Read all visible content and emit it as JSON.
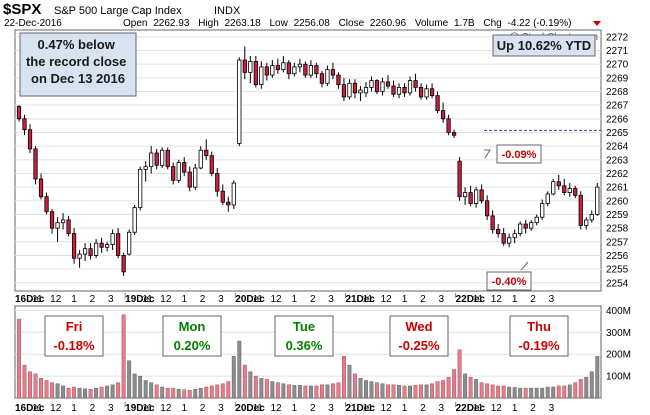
{
  "header": {
    "symbol": "$SPX",
    "name": "S&P 500 Large Cap Index",
    "exchange": "INDX",
    "date": "22-Dec-2016",
    "open_label": "Open",
    "open": "2262.93",
    "high_label": "High",
    "high": "2263.18",
    "low_label": "Low",
    "low": "2256.08",
    "close_label": "Close",
    "close": "2260.96",
    "volume_label": "Volume",
    "volume": "1.7B",
    "chg_label": "Chg",
    "chg": "-4.22 (-0.19%)",
    "watermark": "@ StockCharts.com"
  },
  "callouts": {
    "record": "0.47% below the record close on Dec 13 2016",
    "ytd": "Up 10.62% YTD",
    "pct_top": "-0.09%",
    "pct_bottom": "-0.40%"
  },
  "days": [
    {
      "name": "Fri",
      "chg": "-0.18%",
      "color": "#cc0000"
    },
    {
      "name": "Mon",
      "chg": "0.20%",
      "color": "#008000"
    },
    {
      "name": "Tue",
      "chg": "0.36%",
      "color": "#008000"
    },
    {
      "name": "Wed",
      "chg": "-0.25%",
      "color": "#cc0000"
    },
    {
      "name": "Thu",
      "chg": "-0.19%",
      "color": "#cc0000"
    }
  ],
  "colors": {
    "up": "#ffffff",
    "down": "#cc1f3a",
    "vol_up": "#8c8c8c",
    "vol_down": "#e07f8a",
    "callout_bg": "#d7e3f1",
    "grid": "#e3e3e3",
    "ref_line": "#3a3ab8"
  },
  "chart_data": {
    "type": "candlestick",
    "price_axis": {
      "ticks": [
        "2254",
        "2255",
        "2256",
        "2257",
        "2258",
        "2259",
        "2260",
        "2261",
        "2262",
        "2263",
        "2264",
        "2265",
        "2266",
        "2267",
        "2268",
        "2269",
        "2270",
        "2271",
        "2272"
      ],
      "ylim": [
        2253.4,
        2272.5
      ]
    },
    "volume_axis": {
      "ticks": [
        "100M",
        "200M",
        "300M",
        "400M"
      ],
      "ylim": [
        0,
        420
      ]
    },
    "record_close_level": 2265.15,
    "x_tick_labels": [
      {
        "t": "16Dec",
        "b": true
      },
      {
        "t": "11",
        "b": false
      },
      {
        "t": "12",
        "b": false
      },
      {
        "t": "1",
        "b": false
      },
      {
        "t": "2",
        "b": false
      },
      {
        "t": "3",
        "b": false
      },
      {
        "t": "19Dec",
        "b": true
      },
      {
        "t": "11",
        "b": false
      },
      {
        "t": "12",
        "b": false
      },
      {
        "t": "1",
        "b": false
      },
      {
        "t": "2",
        "b": false
      },
      {
        "t": "3",
        "b": false
      },
      {
        "t": "20Dec",
        "b": true
      },
      {
        "t": "11",
        "b": false
      },
      {
        "t": "12",
        "b": false
      },
      {
        "t": "1",
        "b": false
      },
      {
        "t": "2",
        "b": false
      },
      {
        "t": "3",
        "b": false
      },
      {
        "t": "21Dec",
        "b": true
      },
      {
        "t": "11",
        "b": false
      },
      {
        "t": "12",
        "b": false
      },
      {
        "t": "1",
        "b": false
      },
      {
        "t": "2",
        "b": false
      },
      {
        "t": "3",
        "b": false
      },
      {
        "t": "22Dec",
        "b": true
      },
      {
        "t": "11",
        "b": false
      },
      {
        "t": "12",
        "b": false
      },
      {
        "t": "1",
        "b": false
      },
      {
        "t": "2",
        "b": false
      },
      {
        "t": "3",
        "b": false
      }
    ],
    "candles": [
      [
        2266.9,
        2267.0,
        2265.8,
        2266.0,
        360
      ],
      [
        2266.0,
        2266.3,
        2264.8,
        2265.2,
        150
      ],
      [
        2265.2,
        2265.6,
        2263.5,
        2263.8,
        120
      ],
      [
        2263.8,
        2264.0,
        2261.2,
        2261.6,
        110
      ],
      [
        2261.6,
        2262.0,
        2260.1,
        2260.3,
        90
      ],
      [
        2260.3,
        2260.6,
        2259.0,
        2259.2,
        80
      ],
      [
        2259.2,
        2259.4,
        2257.6,
        2258.0,
        70
      ],
      [
        2258.0,
        2258.8,
        2257.0,
        2258.4,
        65
      ],
      [
        2258.4,
        2259.1,
        2257.9,
        2258.6,
        55
      ],
      [
        2258.6,
        2258.9,
        2257.4,
        2257.6,
        45
      ],
      [
        2257.6,
        2258.0,
        2255.4,
        2255.8,
        50
      ],
      [
        2255.8,
        2256.4,
        2255.1,
        2256.1,
        45
      ],
      [
        2256.1,
        2256.9,
        2255.6,
        2256.5,
        42
      ],
      [
        2256.5,
        2256.9,
        2255.7,
        2256.0,
        40
      ],
      [
        2256.0,
        2257.2,
        2255.8,
        2256.9,
        45
      ],
      [
        2256.9,
        2257.3,
        2256.2,
        2256.6,
        50
      ],
      [
        2256.6,
        2257.0,
        2256.3,
        2256.8,
        55
      ],
      [
        2256.8,
        2257.9,
        2256.4,
        2257.6,
        60
      ],
      [
        2257.6,
        2258.0,
        2255.8,
        2256.0,
        70
      ],
      [
        2256.0,
        2256.2,
        2254.5,
        2254.8,
        380
      ],
      [
        2256.1,
        2257.9,
        2256.0,
        2257.7,
        170
      ],
      [
        2257.7,
        2259.7,
        2257.5,
        2259.5,
        110
      ],
      [
        2259.5,
        2262.5,
        2259.3,
        2262.3,
        100
      ],
      [
        2262.3,
        2262.9,
        2261.4,
        2262.5,
        80
      ],
      [
        2262.5,
        2264.0,
        2262.0,
        2263.5,
        70
      ],
      [
        2263.5,
        2263.8,
        2262.3,
        2262.6,
        60
      ],
      [
        2262.6,
        2263.9,
        2262.4,
        2263.7,
        50
      ],
      [
        2263.7,
        2263.9,
        2262.3,
        2262.5,
        45
      ],
      [
        2262.5,
        2262.8,
        2261.2,
        2261.5,
        45
      ],
      [
        2261.5,
        2263.0,
        2261.3,
        2262.8,
        40
      ],
      [
        2262.8,
        2263.2,
        2261.8,
        2262.1,
        38
      ],
      [
        2262.1,
        2262.5,
        2260.7,
        2261.0,
        35
      ],
      [
        2261.0,
        2262.7,
        2260.8,
        2262.4,
        40
      ],
      [
        2262.4,
        2264.0,
        2262.3,
        2263.7,
        45
      ],
      [
        2263.7,
        2264.5,
        2263.0,
        2263.3,
        50
      ],
      [
        2263.3,
        2263.6,
        2261.8,
        2262.0,
        55
      ],
      [
        2262.0,
        2262.4,
        2260.3,
        2260.7,
        60
      ],
      [
        2260.7,
        2261.2,
        2259.7,
        2259.9,
        65
      ],
      [
        2259.9,
        2260.3,
        2259.2,
        2259.7,
        75
      ],
      [
        2259.7,
        2261.5,
        2259.4,
        2261.3,
        190
      ],
      [
        2264.2,
        2270.5,
        2264.0,
        2270.3,
        260
      ],
      [
        2270.3,
        2271.3,
        2268.9,
        2269.4,
        150
      ],
      [
        2269.4,
        2270.6,
        2268.6,
        2270.2,
        120
      ],
      [
        2270.2,
        2270.6,
        2268.3,
        2268.5,
        100
      ],
      [
        2268.5,
        2270.2,
        2268.2,
        2269.8,
        90
      ],
      [
        2269.8,
        2270.1,
        2268.8,
        2269.2,
        85
      ],
      [
        2269.2,
        2270.3,
        2269.0,
        2269.9,
        75
      ],
      [
        2269.9,
        2270.4,
        2269.3,
        2269.6,
        70
      ],
      [
        2269.6,
        2270.6,
        2269.4,
        2270.1,
        65
      ],
      [
        2270.1,
        2270.3,
        2268.9,
        2269.3,
        60
      ],
      [
        2269.3,
        2270.1,
        2269.1,
        2269.8,
        58
      ],
      [
        2269.8,
        2270.4,
        2269.4,
        2270.0,
        58
      ],
      [
        2270.0,
        2270.2,
        2269.0,
        2269.2,
        55
      ],
      [
        2269.2,
        2270.3,
        2269.0,
        2269.9,
        55
      ],
      [
        2269.9,
        2270.1,
        2269.0,
        2269.3,
        55
      ],
      [
        2269.3,
        2269.5,
        2268.3,
        2268.6,
        60
      ],
      [
        2268.6,
        2269.9,
        2268.4,
        2269.6,
        60
      ],
      [
        2269.6,
        2270.1,
        2268.9,
        2269.2,
        65
      ],
      [
        2269.2,
        2269.4,
        2268.2,
        2268.5,
        70
      ],
      [
        2268.5,
        2269.0,
        2267.3,
        2267.6,
        190
      ],
      [
        2267.6,
        2268.9,
        2267.4,
        2268.6,
        150
      ],
      [
        2268.6,
        2268.9,
        2267.5,
        2267.9,
        110
      ],
      [
        2267.9,
        2268.4,
        2267.3,
        2268.1,
        90
      ],
      [
        2267.9,
        2268.7,
        2267.6,
        2268.3,
        80
      ],
      [
        2268.3,
        2269.1,
        2268.0,
        2268.8,
        75
      ],
      [
        2268.8,
        2268.9,
        2267.8,
        2268.0,
        70
      ],
      [
        2268.0,
        2269.0,
        2267.7,
        2268.7,
        65
      ],
      [
        2268.7,
        2269.2,
        2268.2,
        2268.4,
        60
      ],
      [
        2268.4,
        2268.8,
        2267.6,
        2267.8,
        60
      ],
      [
        2267.8,
        2268.6,
        2267.5,
        2268.3,
        58
      ],
      [
        2268.3,
        2268.6,
        2267.6,
        2267.9,
        55
      ],
      [
        2267.9,
        2269.1,
        2267.7,
        2268.8,
        55
      ],
      [
        2268.8,
        2269.3,
        2268.0,
        2268.3,
        58
      ],
      [
        2268.3,
        2268.6,
        2267.4,
        2267.6,
        60
      ],
      [
        2267.6,
        2268.5,
        2267.4,
        2268.2,
        60
      ],
      [
        2268.2,
        2268.6,
        2267.5,
        2267.7,
        65
      ],
      [
        2267.7,
        2268.0,
        2266.4,
        2266.6,
        75
      ],
      [
        2266.6,
        2267.2,
        2265.7,
        2266.0,
        80
      ],
      [
        2266.0,
        2266.3,
        2264.8,
        2265.0,
        95
      ],
      [
        2265.0,
        2265.2,
        2264.6,
        2264.8,
        130
      ],
      [
        2262.9,
        2263.2,
        2260.0,
        2260.3,
        220
      ],
      [
        2260.3,
        2261.0,
        2259.7,
        2260.6,
        110
      ],
      [
        2260.6,
        2261.1,
        2259.6,
        2259.8,
        95
      ],
      [
        2259.8,
        2261.0,
        2259.5,
        2260.8,
        85
      ],
      [
        2260.8,
        2261.2,
        2259.8,
        2260.0,
        70
      ],
      [
        2260.0,
        2260.4,
        2258.6,
        2258.9,
        65
      ],
      [
        2258.9,
        2259.3,
        2257.6,
        2257.9,
        60
      ],
      [
        2257.9,
        2258.3,
        2257.3,
        2257.6,
        55
      ],
      [
        2257.6,
        2258.0,
        2256.7,
        2256.9,
        55
      ],
      [
        2256.9,
        2257.6,
        2256.6,
        2257.3,
        50
      ],
      [
        2257.3,
        2257.9,
        2256.9,
        2257.6,
        48
      ],
      [
        2257.6,
        2258.5,
        2257.4,
        2258.3,
        45
      ],
      [
        2258.3,
        2258.6,
        2257.6,
        2258.0,
        45
      ],
      [
        2258.0,
        2258.6,
        2257.8,
        2258.4,
        45
      ],
      [
        2258.4,
        2259.0,
        2258.2,
        2258.8,
        45
      ],
      [
        2258.8,
        2260.1,
        2258.6,
        2259.8,
        45
      ],
      [
        2259.8,
        2260.7,
        2259.6,
        2260.5,
        50
      ],
      [
        2260.5,
        2261.6,
        2260.4,
        2261.4,
        50
      ],
      [
        2261.4,
        2261.9,
        2260.8,
        2261.1,
        55
      ],
      [
        2261.1,
        2261.6,
        2260.4,
        2260.6,
        55
      ],
      [
        2260.6,
        2261.3,
        2260.3,
        2260.9,
        60
      ],
      [
        2260.9,
        2261.1,
        2260.2,
        2260.4,
        70
      ],
      [
        2260.4,
        2260.7,
        2257.9,
        2258.2,
        85
      ],
      [
        2258.2,
        2258.8,
        2257.9,
        2258.6,
        95
      ],
      [
        2258.6,
        2259.3,
        2258.4,
        2259.0,
        120
      ],
      [
        2259.0,
        2261.3,
        2258.9,
        2261.0,
        190
      ]
    ]
  }
}
